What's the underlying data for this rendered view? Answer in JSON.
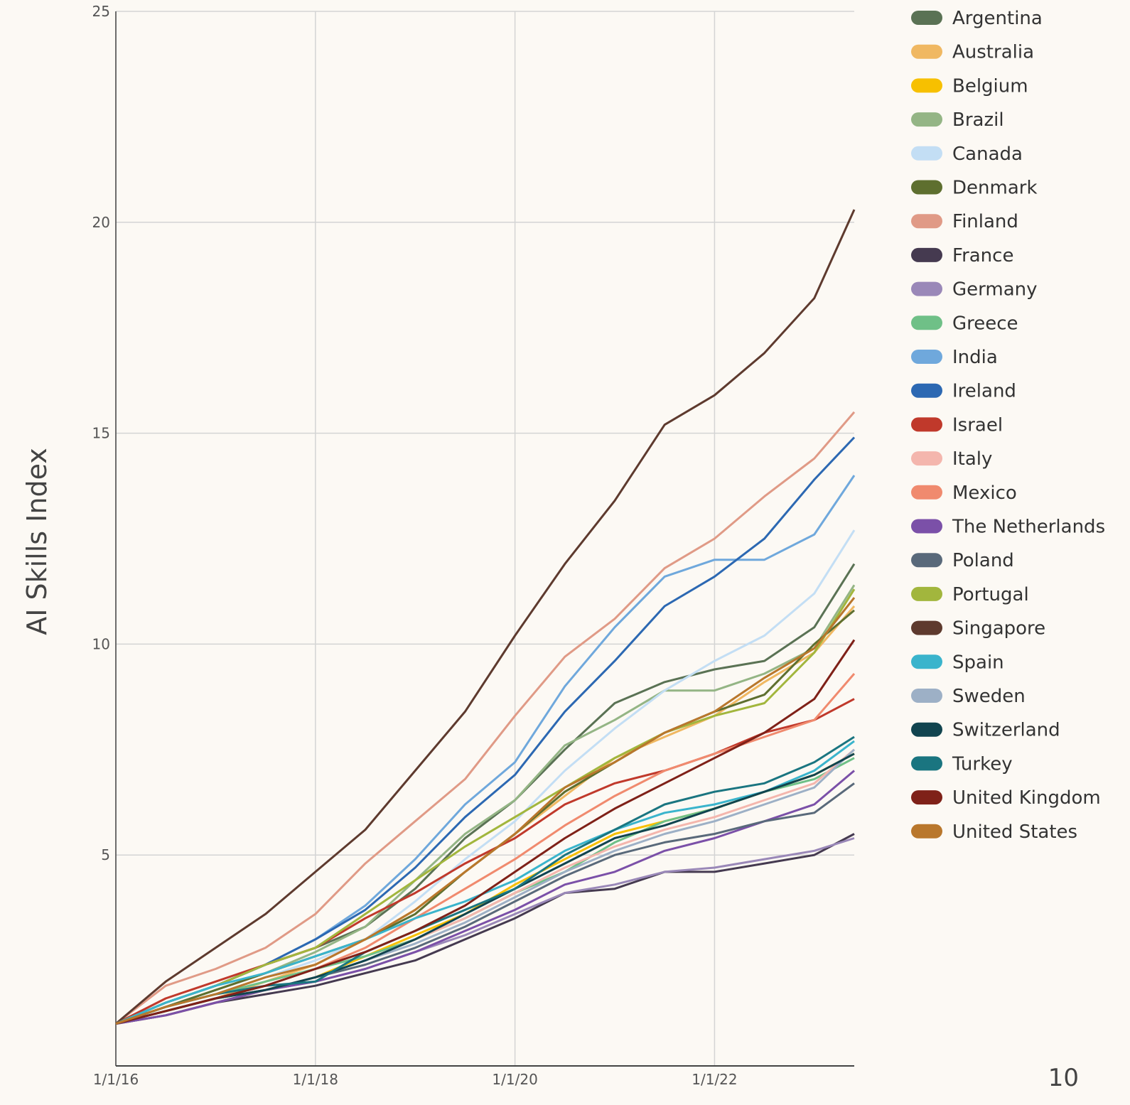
{
  "chart_data": {
    "type": "line",
    "ylabel": "AI Skills Index",
    "page_number": "10",
    "x": [
      2016,
      2016.5,
      2017,
      2017.5,
      2018,
      2018.5,
      2019,
      2019.5,
      2020,
      2020.5,
      2021,
      2021.5,
      2022,
      2022.5,
      2023,
      2023.4
    ],
    "xlim": [
      2016,
      2023.4
    ],
    "xticks": [
      {
        "value": 2016,
        "label": "1/1/16"
      },
      {
        "value": 2018,
        "label": "1/1/18"
      },
      {
        "value": 2020,
        "label": "1/1/20"
      },
      {
        "value": 2022,
        "label": "1/1/22"
      }
    ],
    "ylim": [
      0,
      25
    ],
    "yticks": [
      5,
      10,
      15,
      20,
      25
    ],
    "grid": true,
    "legend": "right",
    "series": [
      {
        "name": "Argentina",
        "color": "#5a7254",
        "values": [
          1,
          1.5,
          1.9,
          2.4,
          2.8,
          3.3,
          4.2,
          5.4,
          6.3,
          7.5,
          8.6,
          9.1,
          9.4,
          9.6,
          10.4,
          11.9
        ]
      },
      {
        "name": "Australia",
        "color": "#f0b862",
        "values": [
          1,
          1.3,
          1.6,
          2.0,
          2.4,
          3.0,
          3.7,
          4.6,
          5.5,
          6.4,
          7.3,
          7.8,
          8.3,
          9.1,
          9.8,
          10.9
        ]
      },
      {
        "name": "Belgium",
        "color": "#f7c000",
        "values": [
          1,
          1.2,
          1.5,
          1.8,
          2.1,
          2.6,
          3.1,
          3.6,
          4.3,
          4.9,
          5.5,
          5.8,
          6.1,
          6.5,
          6.9,
          7.4
        ]
      },
      {
        "name": "Brazil",
        "color": "#94b585",
        "values": [
          1,
          1.4,
          1.8,
          2.2,
          2.7,
          3.3,
          4.4,
          5.5,
          6.3,
          7.6,
          8.2,
          8.9,
          8.9,
          9.3,
          9.9,
          11.4
        ]
      },
      {
        "name": "Canada",
        "color": "#c3def4",
        "values": [
          1,
          1.4,
          1.7,
          2.1,
          2.5,
          3.0,
          3.9,
          4.9,
          5.8,
          7.0,
          8.0,
          8.9,
          9.6,
          10.2,
          11.2,
          12.7
        ]
      },
      {
        "name": "Denmark",
        "color": "#5e6f2f",
        "values": [
          1,
          1.4,
          1.8,
          2.2,
          2.6,
          3.0,
          3.6,
          4.6,
          5.5,
          6.5,
          7.2,
          7.9,
          8.4,
          8.8,
          10.0,
          10.8
        ]
      },
      {
        "name": "Finland",
        "color": "#e09a86",
        "values": [
          1,
          1.9,
          2.3,
          2.8,
          3.6,
          4.8,
          5.8,
          6.8,
          8.3,
          9.7,
          10.6,
          11.8,
          12.5,
          13.5,
          14.4,
          15.5
        ]
      },
      {
        "name": "France",
        "color": "#453a50",
        "values": [
          1,
          1.2,
          1.5,
          1.7,
          1.9,
          2.2,
          2.5,
          3.0,
          3.5,
          4.1,
          4.2,
          4.6,
          4.6,
          4.8,
          5.0,
          5.5
        ]
      },
      {
        "name": "Germany",
        "color": "#9a88b8",
        "values": [
          1,
          1.2,
          1.5,
          1.8,
          2.0,
          2.3,
          2.7,
          3.1,
          3.6,
          4.1,
          4.3,
          4.6,
          4.7,
          4.9,
          5.1,
          5.4
        ]
      },
      {
        "name": "Greece",
        "color": "#6fc087",
        "values": [
          1,
          1.4,
          1.7,
          2.0,
          2.3,
          2.6,
          3.0,
          3.5,
          4.1,
          4.6,
          5.3,
          5.8,
          6.1,
          6.5,
          6.8,
          7.3
        ]
      },
      {
        "name": "India",
        "color": "#6fa8dc",
        "values": [
          1,
          1.5,
          1.9,
          2.4,
          3.0,
          3.8,
          4.9,
          6.2,
          7.2,
          9.0,
          10.4,
          11.6,
          12.0,
          12.0,
          12.6,
          14.0
        ]
      },
      {
        "name": "Ireland",
        "color": "#2c68b2",
        "values": [
          1,
          1.5,
          1.9,
          2.4,
          3.0,
          3.7,
          4.7,
          5.9,
          6.9,
          8.4,
          9.6,
          10.9,
          11.6,
          12.5,
          13.9,
          14.9
        ]
      },
      {
        "name": "Israel",
        "color": "#c0392b",
        "values": [
          1,
          1.6,
          2.0,
          2.4,
          2.8,
          3.5,
          4.1,
          4.8,
          5.4,
          6.2,
          6.7,
          7.0,
          7.4,
          7.9,
          8.2,
          8.7
        ]
      },
      {
        "name": "Italy",
        "color": "#f4b6ad",
        "values": [
          1,
          1.3,
          1.6,
          1.8,
          2.1,
          2.5,
          3.0,
          3.5,
          4.1,
          4.7,
          5.2,
          5.6,
          5.9,
          6.3,
          6.7,
          7.5
        ]
      },
      {
        "name": "Mexico",
        "color": "#f08a6e",
        "values": [
          1,
          1.3,
          1.6,
          1.9,
          2.3,
          2.8,
          3.5,
          4.2,
          4.9,
          5.7,
          6.4,
          7.0,
          7.4,
          7.8,
          8.2,
          9.3
        ]
      },
      {
        "name": "The Netherlands",
        "color": "#7b50a8",
        "values": [
          1,
          1.2,
          1.5,
          1.8,
          2.0,
          2.3,
          2.7,
          3.2,
          3.7,
          4.3,
          4.6,
          5.1,
          5.4,
          5.8,
          6.2,
          7.0
        ]
      },
      {
        "name": "Poland",
        "color": "#59697a",
        "values": [
          1,
          1.3,
          1.6,
          1.8,
          2.1,
          2.4,
          2.8,
          3.3,
          3.9,
          4.5,
          5.0,
          5.3,
          5.5,
          5.8,
          6.0,
          6.7
        ]
      },
      {
        "name": "Portugal",
        "color": "#a2b63d",
        "values": [
          1,
          1.5,
          1.9,
          2.4,
          2.8,
          3.6,
          4.4,
          5.2,
          5.9,
          6.6,
          7.3,
          7.9,
          8.3,
          8.6,
          9.8,
          11.3
        ]
      },
      {
        "name": "Singapore",
        "color": "#5e3a2e",
        "values": [
          1,
          2.0,
          2.8,
          3.6,
          4.6,
          5.6,
          7.0,
          8.4,
          10.2,
          11.9,
          13.4,
          15.2,
          15.9,
          16.9,
          18.2,
          20.3
        ]
      },
      {
        "name": "Spain",
        "color": "#3ab4cc",
        "values": [
          1,
          1.5,
          1.9,
          2.2,
          2.6,
          3.0,
          3.5,
          3.9,
          4.4,
          5.1,
          5.6,
          6.0,
          6.2,
          6.5,
          7.0,
          7.7
        ]
      },
      {
        "name": "Sweden",
        "color": "#9db0c6",
        "values": [
          1,
          1.3,
          1.6,
          1.8,
          2.1,
          2.5,
          2.9,
          3.4,
          4.0,
          4.6,
          5.1,
          5.5,
          5.8,
          6.2,
          6.6,
          7.5
        ]
      },
      {
        "name": "Switzerland",
        "color": "#11444f",
        "values": [
          1,
          1.3,
          1.6,
          1.8,
          2.1,
          2.5,
          3.0,
          3.6,
          4.2,
          4.8,
          5.4,
          5.7,
          6.1,
          6.5,
          6.9,
          7.4
        ]
      },
      {
        "name": "Turkey",
        "color": "#1a7580",
        "values": [
          1,
          1.4,
          1.7,
          1.9,
          2.0,
          2.7,
          3.2,
          3.7,
          4.2,
          5.0,
          5.6,
          6.2,
          6.5,
          6.7,
          7.2,
          7.8
        ]
      },
      {
        "name": "United Kingdom",
        "color": "#7f2118",
        "values": [
          1,
          1.3,
          1.6,
          1.9,
          2.3,
          2.7,
          3.2,
          3.8,
          4.6,
          5.4,
          6.1,
          6.7,
          7.3,
          7.9,
          8.7,
          10.1
        ]
      },
      {
        "name": "United States",
        "color": "#b9772c",
        "values": [
          1,
          1.4,
          1.7,
          2.1,
          2.4,
          3.0,
          3.7,
          4.6,
          5.5,
          6.6,
          7.2,
          7.9,
          8.4,
          9.2,
          9.9,
          11.1
        ]
      }
    ]
  }
}
